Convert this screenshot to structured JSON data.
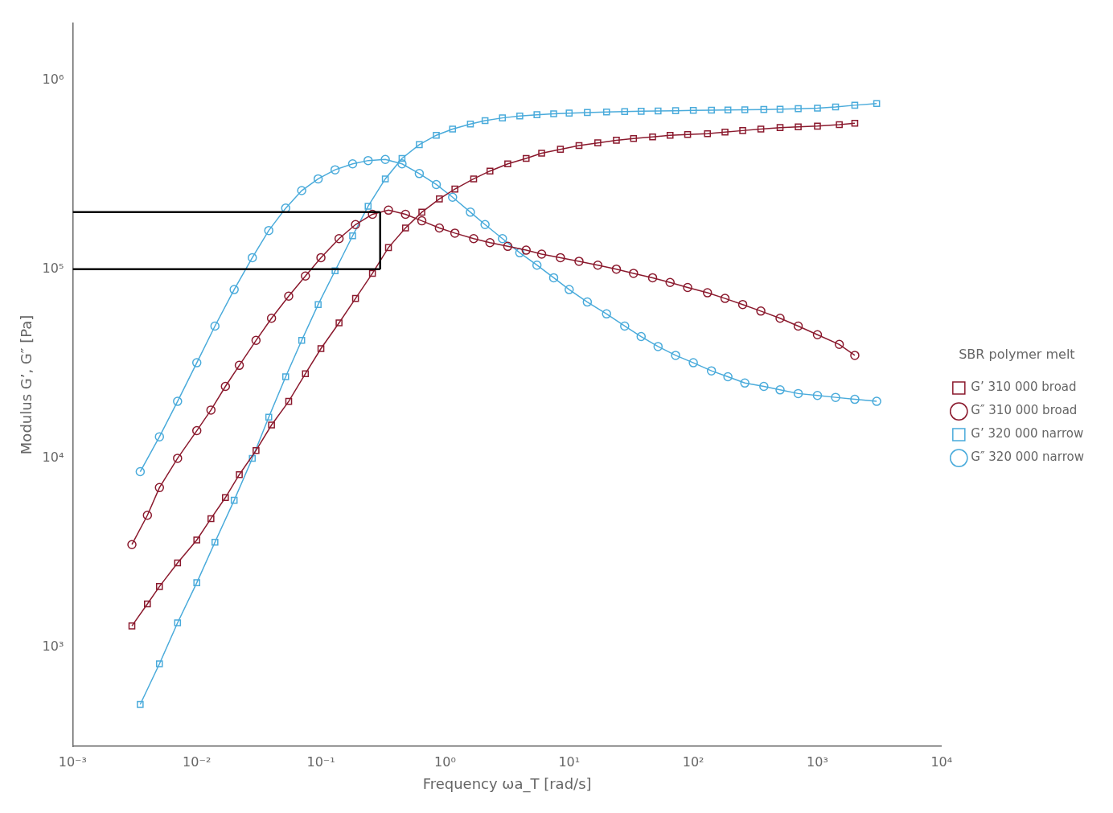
{
  "chart_data": {
    "type": "line",
    "xlabel": "Frequency ωa_T [rad/s]",
    "ylabel": "Modulus G’, G″ [Pa]",
    "log": true,
    "grid": false,
    "legend": "right",
    "legend_title": "SBR polymer melt",
    "xlim": [
      0.001,
      10000
    ],
    "ylim": [
      300,
      2000000
    ],
    "xticks": [
      {
        "value": 0.001,
        "label": "10⁻³"
      },
      {
        "value": 0.01,
        "label": "10⁻²"
      },
      {
        "value": 0.1,
        "label": "10⁻¹"
      },
      {
        "value": 1,
        "label": "10⁰"
      },
      {
        "value": 10,
        "label": "10¹"
      },
      {
        "value": 100,
        "label": "10²"
      },
      {
        "value": 1000,
        "label": "10³"
      },
      {
        "value": 10000,
        "label": "10⁴"
      }
    ],
    "yticks": [
      {
        "value": 1000,
        "label": "10³"
      },
      {
        "value": 10000,
        "label": "10⁴"
      },
      {
        "value": 100000,
        "label": "10⁵"
      },
      {
        "value": 1000000,
        "label": "10⁶"
      }
    ],
    "series": [
      {
        "name": "G’ 310 000 broad",
        "color": "#8B1A2E",
        "marker": "square",
        "line_style": "solid",
        "x": [
          0.003,
          0.004,
          0.005,
          0.007,
          0.01,
          0.013,
          0.017,
          0.022,
          0.03,
          0.04,
          0.055,
          0.075,
          0.1,
          0.14,
          0.19,
          0.26,
          0.35,
          0.48,
          0.65,
          0.9,
          1.2,
          1.7,
          2.3,
          3.2,
          4.5,
          6.0,
          8.5,
          12,
          17,
          24,
          33,
          47,
          65,
          90,
          130,
          180,
          250,
          350,
          500,
          700,
          1000,
          1500,
          2000
        ],
        "values": [
          1300,
          1700,
          2100,
          2800,
          3700,
          4800,
          6200,
          8200,
          11000.0,
          15000.0,
          20000.0,
          28000.0,
          38000.0,
          52000.0,
          70000.0,
          95000.0,
          130000.0,
          165000.0,
          200000.0,
          235000.0,
          265000.0,
          300000.0,
          330000.0,
          360000.0,
          385000.0,
          410000.0,
          430000.0,
          450000.0,
          465000.0,
          480000.0,
          490000.0,
          500000.0,
          510000.0,
          515000.0,
          520000.0,
          530000.0,
          540000.0,
          550000.0,
          560000.0,
          565000.0,
          570000.0,
          580000.0,
          590000.0
        ]
      },
      {
        "name": "G″ 310 000 broad",
        "color": "#8B1A2E",
        "marker": "circle",
        "line_style": "solid",
        "x": [
          0.003,
          0.004,
          0.005,
          0.007,
          0.01,
          0.013,
          0.017,
          0.022,
          0.03,
          0.04,
          0.055,
          0.075,
          0.1,
          0.14,
          0.19,
          0.26,
          0.35,
          0.48,
          0.65,
          0.9,
          1.2,
          1.7,
          2.3,
          3.2,
          4.5,
          6.0,
          8.5,
          12,
          17,
          24,
          33,
          47,
          65,
          90,
          130,
          180,
          250,
          350,
          500,
          700,
          1000,
          1500,
          2000
        ],
        "values": [
          3500,
          5000,
          7000,
          10000.0,
          14000.0,
          18000.0,
          24000.0,
          31000.0,
          42000.0,
          55000.0,
          72000.0,
          92000.0,
          115000.0,
          145000.0,
          172000.0,
          195000.0,
          205000.0,
          195000.0,
          180000.0,
          165000.0,
          155000.0,
          145000.0,
          138000.0,
          132000.0,
          126000.0,
          120000.0,
          115000.0,
          110000.0,
          105000.0,
          100000.0,
          95000.0,
          90000.0,
          85000.0,
          80000.0,
          75000.0,
          70000.0,
          65000.0,
          60000.0,
          55000.0,
          50000.0,
          45000.0,
          40000.0,
          35000.0
        ]
      },
      {
        "name": "G’ 320 000 narrow",
        "color": "#4AABDB",
        "marker": "square",
        "line_style": "solid",
        "x": [
          0.0035,
          0.005,
          0.007,
          0.01,
          0.014,
          0.02,
          0.028,
          0.038,
          0.052,
          0.07,
          0.095,
          0.13,
          0.18,
          0.24,
          0.33,
          0.45,
          0.62,
          0.85,
          1.15,
          1.6,
          2.1,
          2.9,
          4.0,
          5.5,
          7.5,
          10,
          14,
          20,
          28,
          38,
          52,
          72,
          100,
          140,
          190,
          260,
          370,
          500,
          700,
          1000,
          1400,
          2000,
          3000
        ],
        "values": [
          500,
          820,
          1350,
          2200,
          3600,
          6000,
          10000.0,
          16500.0,
          27000.0,
          42000.0,
          65000.0,
          98000.0,
          150000.0,
          215000.0,
          300000.0,
          385000.0,
          455000.0,
          510000.0,
          550000.0,
          585000.0,
          610000.0,
          630000.0,
          645000.0,
          655000.0,
          662000.0,
          668000.0,
          673000.0,
          677000.0,
          680000.0,
          683000.0,
          686000.0,
          688000.0,
          690000.0,
          692000.0,
          694000.0,
          696000.0,
          698000.0,
          700000.0,
          705000.0,
          710000.0,
          720000.0,
          735000.0,
          750000.0
        ]
      },
      {
        "name": "G″ 320 000 narrow",
        "color": "#4AABDB",
        "marker": "circle",
        "line_style": "solid",
        "x": [
          0.0035,
          0.005,
          0.007,
          0.01,
          0.014,
          0.02,
          0.028,
          0.038,
          0.052,
          0.07,
          0.095,
          0.13,
          0.18,
          0.24,
          0.33,
          0.45,
          0.62,
          0.85,
          1.15,
          1.6,
          2.1,
          2.9,
          4.0,
          5.5,
          7.5,
          10,
          14,
          20,
          28,
          38,
          52,
          72,
          100,
          140,
          190,
          260,
          370,
          500,
          700,
          1000,
          1400,
          2000,
          3000
        ],
        "values": [
          8500,
          13000.0,
          20000.0,
          32000.0,
          50000.0,
          78000.0,
          115000.0,
          160000.0,
          210000.0,
          260000.0,
          300000.0,
          335000.0,
          360000.0,
          375000.0,
          380000.0,
          360000.0,
          320000.0,
          280000.0,
          240000.0,
          200000.0,
          172000.0,
          145000.0,
          122000.0,
          105000.0,
          90000.0,
          78000.0,
          67000.0,
          58000.0,
          50000.0,
          44000.0,
          39000.0,
          35000.0,
          32000.0,
          29000.0,
          27000.0,
          25000.0,
          24000.0,
          23000.0,
          22000.0,
          21500.0,
          21000.0,
          20500.0,
          20000.0
        ]
      },
      {
        "color": "#000000",
        "marker": "none",
        "line_style": "solid",
        "x": [
          0.3,
          0.3
        ],
        "values": [
          100000.0,
          200000.0
        ]
      },
      {
        "color": "#000000",
        "marker": "none",
        "line_style": "solid",
        "x": [
          0.001,
          0.3
        ],
        "values": [
          200000.0,
          200000.0
        ]
      },
      {
        "color": "#000000",
        "marker": "none",
        "line_style": "solid",
        "x": [
          0.001,
          0.3
        ],
        "values": [
          100000.0,
          100000.0
        ]
      }
    ]
  }
}
